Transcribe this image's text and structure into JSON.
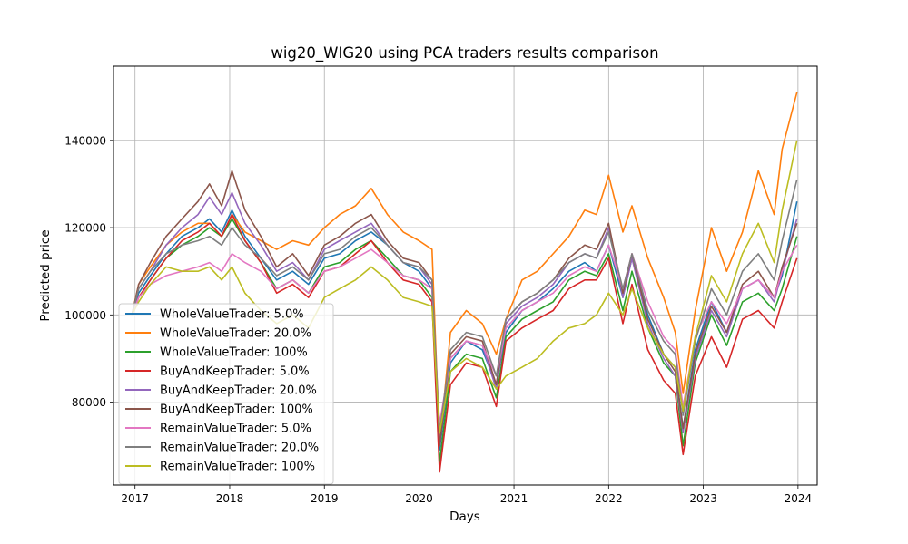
{
  "chart_data": {
    "type": "line",
    "title": "wig20_WIG20 using PCA traders results comparison",
    "xlabel": "Days",
    "ylabel": "Predicted price",
    "x_ticks": [
      "2017",
      "2018",
      "2019",
      "2020",
      "2021",
      "2022",
      "2023",
      "2024"
    ],
    "y_ticks": [
      80000,
      100000,
      120000,
      140000
    ],
    "y_tick_labels": [
      "80000",
      "100000",
      "120000",
      "140000"
    ],
    "xlim": [
      "2016-10-10",
      "2024-03-15"
    ],
    "ylim": [
      61000,
      157000
    ],
    "grid": true,
    "legend_position": "lower-left",
    "x_dates": [
      "2016-12-20",
      "2017-01-15",
      "2017-03-01",
      "2017-05-01",
      "2017-07-01",
      "2017-09-01",
      "2017-10-15",
      "2017-12-01",
      "2018-01-10",
      "2018-03-01",
      "2018-05-01",
      "2018-07-01",
      "2018-09-01",
      "2018-11-01",
      "2019-01-01",
      "2019-03-01",
      "2019-05-01",
      "2019-07-01",
      "2019-09-01",
      "2019-11-01",
      "2020-01-01",
      "2020-02-20",
      "2020-03-20",
      "2020-05-01",
      "2020-07-01",
      "2020-09-01",
      "2020-10-25",
      "2020-12-01",
      "2021-02-01",
      "2021-04-01",
      "2021-06-01",
      "2021-08-01",
      "2021-10-01",
      "2021-11-15",
      "2022-01-01",
      "2022-02-25",
      "2022-04-01",
      "2022-06-01",
      "2022-08-01",
      "2022-09-15",
      "2022-10-15",
      "2022-12-01",
      "2023-02-01",
      "2023-04-01",
      "2023-06-01",
      "2023-08-01",
      "2023-10-01",
      "2023-11-01",
      "2023-12-28"
    ],
    "series": [
      {
        "name": "WholeValueTrader: 5.0%",
        "color": "#1f77b4",
        "values": [
          100000,
          105000,
          109000,
          114000,
          118000,
          120000,
          122000,
          119000,
          124000,
          118000,
          113000,
          108000,
          110000,
          107000,
          113000,
          114000,
          117000,
          119000,
          116000,
          112000,
          110000,
          106000,
          69000,
          89000,
          94000,
          92000,
          84000,
          96000,
          101000,
          103000,
          106000,
          110000,
          112000,
          110000,
          116000,
          104000,
          113000,
          100000,
          91000,
          88000,
          74000,
          92000,
          103000,
          96000,
          106000,
          108000,
          104000,
          109000,
          126000
        ]
      },
      {
        "name": "WholeValueTrader: 20.0%",
        "color": "#ff7f0e",
        "values": [
          100000,
          107000,
          111000,
          116000,
          119000,
          121000,
          121000,
          118000,
          123000,
          119000,
          117000,
          115000,
          117000,
          116000,
          120000,
          123000,
          125000,
          129000,
          123000,
          119000,
          117000,
          115000,
          70000,
          96000,
          101000,
          98000,
          91000,
          99000,
          108000,
          110000,
          114000,
          118000,
          124000,
          123000,
          132000,
          119000,
          125000,
          113000,
          104000,
          96000,
          82000,
          101000,
          120000,
          110000,
          119000,
          133000,
          123000,
          138000,
          151000
        ]
      },
      {
        "name": "WholeValueTrader: 100%",
        "color": "#2ca02c",
        "values": [
          100000,
          104000,
          108000,
          113000,
          116000,
          118000,
          120000,
          118000,
          122000,
          117000,
          112000,
          106000,
          108000,
          105000,
          111000,
          112000,
          115000,
          117000,
          113000,
          109000,
          108000,
          104000,
          66000,
          87000,
          91000,
          90000,
          81000,
          95000,
          99000,
          101000,
          103000,
          108000,
          110000,
          109000,
          114000,
          101000,
          110000,
          97000,
          89000,
          86000,
          70000,
          89000,
          100000,
          93000,
          103000,
          105000,
          101000,
          106000,
          118000
        ]
      },
      {
        "name": "BuyAndKeepTrader: 5.0%",
        "color": "#d62728",
        "values": [
          100000,
          104000,
          108000,
          113000,
          117000,
          119000,
          121000,
          118000,
          123000,
          117000,
          112000,
          105000,
          107000,
          104000,
          110000,
          111000,
          114000,
          117000,
          112000,
          108000,
          107000,
          103000,
          64000,
          84000,
          89000,
          88000,
          79000,
          94000,
          97000,
          99000,
          101000,
          106000,
          108000,
          108000,
          113000,
          98000,
          107000,
          92000,
          85000,
          82000,
          68000,
          86000,
          95000,
          88000,
          99000,
          101000,
          97000,
          103000,
          113000
        ]
      },
      {
        "name": "BuyAndKeepTrader: 20.0%",
        "color": "#9467bd",
        "values": [
          100000,
          106000,
          110000,
          116000,
          120000,
          123000,
          127000,
          123000,
          128000,
          121000,
          116000,
          110000,
          112000,
          108000,
          115000,
          117000,
          119000,
          121000,
          116000,
          112000,
          111000,
          107000,
          70000,
          90000,
          94000,
          93000,
          83000,
          98000,
          102000,
          104000,
          107000,
          112000,
          114000,
          113000,
          120000,
          104000,
          113000,
          98000,
          90000,
          86000,
          73000,
          90000,
          101000,
          95000,
          106000,
          108000,
          103000,
          110000,
          122000
        ]
      },
      {
        "name": "BuyAndKeepTrader: 100%",
        "color": "#8c564b",
        "values": [
          100000,
          107000,
          112000,
          118000,
          122000,
          126000,
          130000,
          125000,
          133000,
          124000,
          118000,
          111000,
          114000,
          109000,
          116000,
          118000,
          121000,
          123000,
          117000,
          113000,
          112000,
          108000,
          70000,
          91000,
          95000,
          94000,
          84000,
          99000,
          103000,
          105000,
          108000,
          113000,
          116000,
          115000,
          121000,
          105000,
          114000,
          99000,
          91000,
          87000,
          74000,
          91000,
          102000,
          96000,
          107000,
          110000,
          104000,
          111000,
          121000
        ]
      },
      {
        "name": "RemainValueTrader: 5.0%",
        "color": "#e377c2",
        "values": [
          100000,
          104000,
          107000,
          109000,
          110000,
          111000,
          112000,
          110000,
          114000,
          112000,
          110000,
          106000,
          108000,
          105000,
          110000,
          111000,
          113000,
          115000,
          112000,
          109000,
          108000,
          106000,
          75000,
          90000,
          94000,
          93000,
          86000,
          97000,
          101000,
          103000,
          105000,
          109000,
          111000,
          110000,
          116000,
          106000,
          114000,
          103000,
          95000,
          92000,
          79000,
          95000,
          103000,
          98000,
          106000,
          108000,
          104000,
          110000,
          116000
        ]
      },
      {
        "name": "RemainValueTrader: 20.0%",
        "color": "#7f7f7f",
        "values": [
          100000,
          106000,
          110000,
          114000,
          116000,
          117000,
          118000,
          116000,
          120000,
          116000,
          113000,
          109000,
          111000,
          108000,
          114000,
          115000,
          118000,
          120000,
          116000,
          112000,
          111000,
          108000,
          73000,
          92000,
          96000,
          95000,
          86000,
          99000,
          103000,
          105000,
          108000,
          112000,
          114000,
          113000,
          119000,
          106000,
          114000,
          101000,
          94000,
          91000,
          77000,
          94000,
          106000,
          100000,
          110000,
          114000,
          108000,
          117000,
          131000
        ]
      },
      {
        "name": "RemainValueTrader: 100%",
        "color": "#bcbd22",
        "values": [
          100000,
          103000,
          107000,
          111000,
          110000,
          110000,
          111000,
          108000,
          111000,
          105000,
          101000,
          98000,
          100000,
          97000,
          104000,
          106000,
          108000,
          111000,
          108000,
          104000,
          103000,
          102000,
          73000,
          87000,
          90000,
          88000,
          83000,
          86000,
          88000,
          90000,
          94000,
          97000,
          98000,
          100000,
          105000,
          100000,
          106000,
          97000,
          91000,
          88000,
          78000,
          95000,
          109000,
          103000,
          114000,
          121000,
          112000,
          124000,
          140000
        ]
      }
    ]
  }
}
